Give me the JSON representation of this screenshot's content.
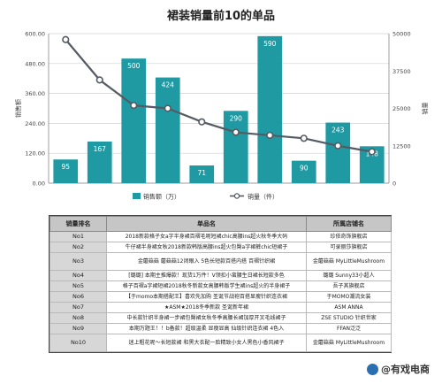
{
  "chart_data": {
    "type": "bar+line",
    "title": "裙装销量前10的单品",
    "categories": [
      "No1",
      "No2",
      "No3",
      "No4",
      "No5",
      "No6",
      "No7",
      "No8",
      "No9",
      "No10"
    ],
    "series": [
      {
        "name": "销售额（万）",
        "type": "bar",
        "axis": "left",
        "values": [
          95,
          167,
          500,
          424,
          71,
          290,
          590,
          90,
          243,
          148
        ],
        "color": "#1f9aa3"
      },
      {
        "name": "销量（件）",
        "type": "line",
        "axis": "right",
        "values": [
          48000,
          34500,
          26000,
          25000,
          20500,
          17000,
          16000,
          15000,
          12500,
          10500
        ],
        "color": "#555a63"
      }
    ],
    "ylabel_left": "销售额",
    "ylabel_right": "销量",
    "ylim_left": [
      0,
      600
    ],
    "ylim_right": [
      0,
      50000
    ],
    "yticks_left": [
      "0.00",
      "120.00",
      "240.00",
      "360.00",
      "480.00",
      "600.00"
    ],
    "yticks_right": [
      "0",
      "12500",
      "25000",
      "37500",
      "50000"
    ],
    "legend": [
      "销售额（万）",
      "销量（件）"
    ],
    "legend_position": "bottom"
  },
  "table": {
    "headers": [
      "销量排名",
      "单品名",
      "所属店铺名"
    ],
    "rows": [
      {
        "rank": "No1",
        "item": "2018新款格子女a字半身裙百褶毛呢短裙chic高腰ins超火秋冬季大码",
        "store": "珍依奇饰旗舰店"
      },
      {
        "rank": "No2",
        "item": "牛仔裙半身裙女秋2018新款韩版高腰ins超火包臀a字裙裤chic短裙子",
        "store": "可录丽莎旗舰店"
      },
      {
        "rank": "No3",
        "item": "金蘑菇菇 蘑菇菇12闭眼入 5色长短款百搭内搭 百褶针织裙",
        "store": "金蘑菇菇 MyLittleMushroom"
      },
      {
        "rank": "No4",
        "item": "[璐璐] 本期主推爆款！现货1万件！V领扣小蛮腰生日裙长短款多色",
        "store": "璐璐 Sunny33小超人"
      },
      {
        "rank": "No5",
        "item": "格子百褶a字裙短裙2018秋冬新款女高腰韩版学生裙ins超火的半身裙子",
        "store": "吾子其旗舰店"
      },
      {
        "rank": "No6",
        "item": "【于momo本期搭配王】喜欢先加购 圣诞节战袍百搭显瘦针织连衣裙",
        "store": "于MOMO潮流女装"
      },
      {
        "rank": "No7",
        "item": "★ASM★2018冬季新款 圣诞新年裙",
        "store": "ASM ANNA"
      },
      {
        "rank": "No8",
        "item": "中长款针织半身裙一步裙包臀裙女秋冬季高腰长裙加厚开叉毛线裙子",
        "store": "ZSE STUDIO 针织世家"
      },
      {
        "rank": "No9",
        "item": "本期万题王！！b备款！超级温柔 显瘦显高 仙级针织连衣裙 4色入",
        "store": "FFAN泛泛"
      },
      {
        "rank": "No10",
        "item": "迷上粗花呢～长短款裙 和黑大衣配一脸精致小女人黑色小香风裙子",
        "store": "金蘑菇菇 MyLittleMushroom"
      }
    ]
  },
  "watermark": {
    "text": "@有戏电商"
  }
}
